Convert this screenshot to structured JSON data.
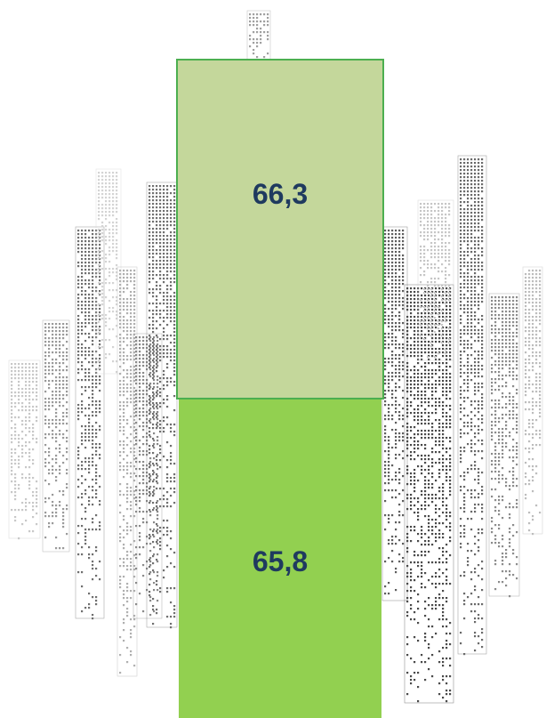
{
  "chart_data": {
    "type": "bar",
    "stacked": true,
    "segments": [
      {
        "value": 65.8,
        "label": "65,8",
        "color": "#92d050",
        "position": "bottom"
      },
      {
        "value": 66.3,
        "label": "66,3",
        "color": "#c4d79b",
        "position": "top"
      }
    ],
    "background_icon": "city-skyline-icon",
    "border_color": "#4caf50"
  }
}
